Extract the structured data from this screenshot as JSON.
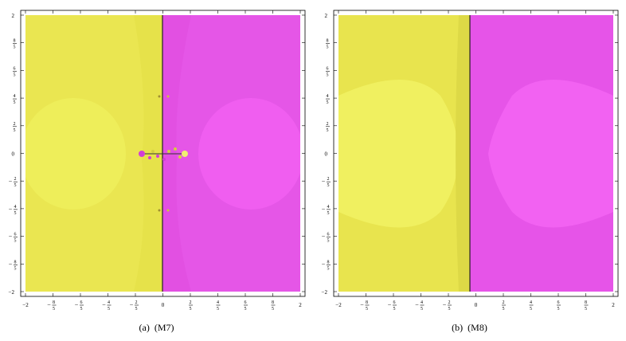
{
  "panels": [
    {
      "caption_letter": "(a)",
      "caption_method": "(M7)",
      "x_ticks": [
        "-2",
        "-8/5",
        "-6/5",
        "-4/5",
        "-2/5",
        "0",
        "2/5",
        "4/5",
        "6/5",
        "8/5",
        "2"
      ],
      "y_ticks": [
        "2",
        "8/5",
        "6/5",
        "4/5",
        "2/5",
        "0",
        "-2/5",
        "-4/5",
        "-6/5",
        "-8/5",
        "-2"
      ],
      "colors": {
        "left": "#e6e24a",
        "left_basin": "#eeee5a",
        "right": "#e250e2",
        "right_basin": "#f05ef0"
      }
    },
    {
      "caption_letter": "(b)",
      "caption_method": "(M8)",
      "x_ticks": [
        "-2",
        "-8/5",
        "-6/5",
        "-4/5",
        "-2/5",
        "0",
        "2/5",
        "4/5",
        "6/5",
        "8/5",
        "2"
      ],
      "y_ticks": [
        "2",
        "8/5",
        "6/5",
        "4/5",
        "2/5",
        "0",
        "-2/5",
        "-4/5",
        "-6/5",
        "-8/5",
        "-2"
      ],
      "colors": {
        "left": "#e8e44e",
        "left_basin": "#f0f060",
        "right": "#e654e8",
        "right_basin": "#f262f2"
      }
    }
  ]
}
